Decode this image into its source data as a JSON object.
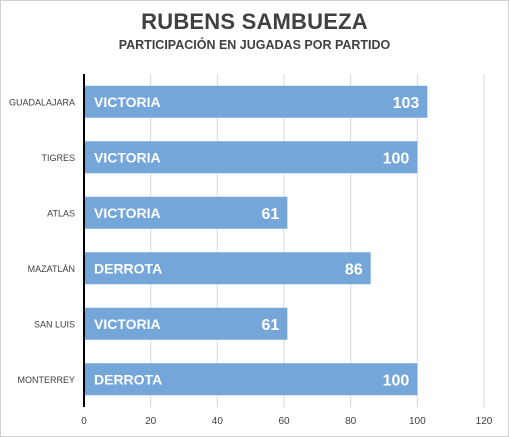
{
  "chart_data": {
    "type": "bar",
    "orientation": "horizontal",
    "title": "RUBENS SAMBUEZA",
    "subtitle": "PARTICIPACIÓN EN JUGADAS POR PARTIDO",
    "categories": [
      "GUADALAJARA",
      "TIGRES",
      "ATLAS",
      "MAZATLÁN",
      "SAN LUIS",
      "MONTERREY"
    ],
    "values": [
      103,
      100,
      61,
      86,
      61,
      100
    ],
    "bar_labels": [
      "VICTORIA",
      "VICTORIA",
      "VICTORIA",
      "DERROTA",
      "VICTORIA",
      "DERROTA"
    ],
    "xlim": [
      0,
      120
    ],
    "x_ticks": [
      0,
      20,
      40,
      60,
      80,
      100,
      120
    ],
    "grid": true,
    "bar_color": "#75a6da",
    "grid_color": "#d9d9d9",
    "axis_color": "#000000",
    "label_color": "#ffffff"
  }
}
